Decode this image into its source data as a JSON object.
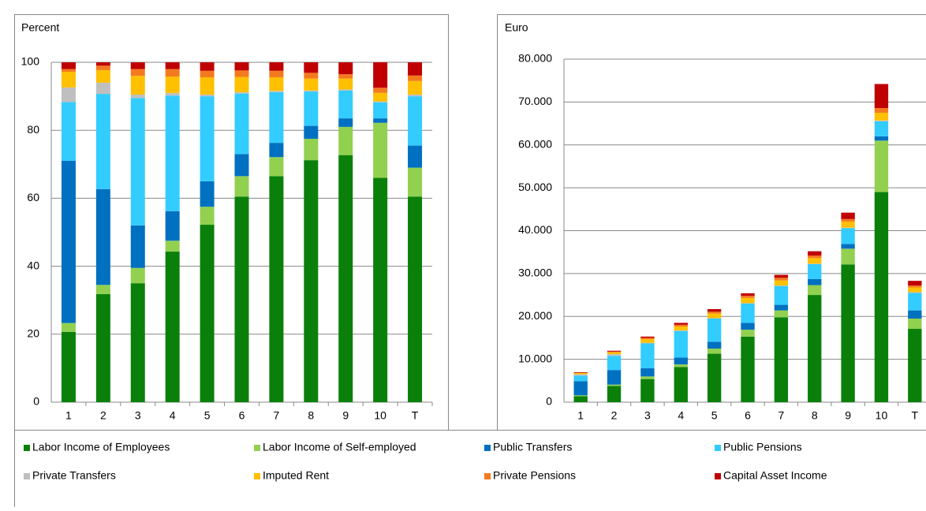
{
  "chart_data": [
    {
      "type": "stacked-bar",
      "axis_label": "Percent",
      "categories": [
        "1",
        "2",
        "3",
        "4",
        "5",
        "6",
        "7",
        "8",
        "9",
        "10",
        "T"
      ],
      "ylim": [
        0,
        100
      ],
      "yticks": [
        0,
        20,
        40,
        60,
        80,
        100
      ],
      "grid": true,
      "series": [
        {
          "name": "Labor Income of Employees",
          "color": "#0a800a",
          "values": [
            20.7,
            31.8,
            35,
            44.3,
            52.2,
            60.5,
            66.5,
            71.2,
            72.7,
            66,
            60.5
          ]
        },
        {
          "name": "Labor Income of Self-employed",
          "color": "#92d050",
          "values": [
            2.6,
            2.7,
            4.5,
            3.2,
            5.3,
            6,
            5.6,
            6.3,
            8.3,
            16.2,
            8.5
          ]
        },
        {
          "name": "Public Transfers",
          "color": "#0070c0",
          "values": [
            47.7,
            28.2,
            12.5,
            8.7,
            7.5,
            6.5,
            4.2,
            3.8,
            2.5,
            1.3,
            6.5
          ]
        },
        {
          "name": "Public Pensions",
          "color": "#33ccff",
          "values": [
            17.3,
            28,
            37.5,
            34,
            25,
            17.8,
            14.9,
            10.1,
            8.2,
            4.7,
            14.5
          ]
        },
        {
          "name": "Private Transfers",
          "color": "#bfbfbf",
          "values": [
            4.3,
            3.3,
            1,
            0.8,
            0.5,
            0.4,
            0.4,
            0.3,
            0.3,
            0.3,
            0.5
          ]
        },
        {
          "name": "Imputed Rent",
          "color": "#ffc000",
          "values": [
            4.6,
            3.7,
            5.5,
            4.8,
            5.1,
            4.5,
            4,
            3.5,
            3.2,
            2.5,
            4
          ]
        },
        {
          "name": "Private Pensions",
          "color": "#f47a1f",
          "values": [
            0.8,
            1.3,
            2,
            2.2,
            1.9,
            1.9,
            1.9,
            1.7,
            1.3,
            1.5,
            1.6
          ]
        },
        {
          "name": "Capital Asset Income",
          "color": "#c00000",
          "values": [
            2,
            1,
            2,
            2,
            2.5,
            2.4,
            2.5,
            3.1,
            3.5,
            7.5,
            3.9
          ]
        }
      ]
    },
    {
      "type": "stacked-bar",
      "axis_label": "Euro",
      "categories": [
        "1",
        "2",
        "3",
        "4",
        "5",
        "6",
        "7",
        "8",
        "9",
        "10",
        "T"
      ],
      "ylim": [
        0,
        80000
      ],
      "yticks": [
        0,
        {
          "value": 10000,
          "label": "10.000"
        },
        {
          "value": 20000,
          "label": "20.000"
        },
        {
          "value": 30000,
          "label": "30.000"
        },
        {
          "value": 40000,
          "label": "40.000"
        },
        {
          "value": 50000,
          "label": "50.000"
        },
        {
          "value": 60000,
          "label": "60.000"
        },
        {
          "value": 70000,
          "label": "70.000"
        },
        {
          "value": 80000,
          "label": "80.000"
        }
      ],
      "grid": true,
      "series": [
        {
          "color": "#0a800a",
          "values": [
            1400,
            3800,
            5400,
            8200,
            11300,
            15300,
            19800,
            25000,
            32100,
            49000,
            17100
          ]
        },
        {
          "color": "#92d050",
          "values": [
            200,
            300,
            600,
            600,
            1200,
            1600,
            1600,
            2300,
            3700,
            12000,
            2400
          ]
        },
        {
          "color": "#0070c0",
          "values": [
            3300,
            3400,
            1900,
            1600,
            1600,
            1600,
            1300,
            1400,
            1100,
            1000,
            1900
          ]
        },
        {
          "color": "#33ccff",
          "values": [
            1300,
            3300,
            5800,
            6200,
            5400,
            4500,
            4400,
            3500,
            3700,
            3500,
            4100
          ]
        },
        {
          "color": "#bfbfbf",
          "values": [
            300,
            400,
            150,
            150,
            100,
            100,
            100,
            100,
            100,
            200,
            150
          ]
        },
        {
          "color": "#ffc000",
          "values": [
            300,
            450,
            850,
            900,
            1100,
            1200,
            1200,
            1300,
            1400,
            1800,
            1100
          ]
        },
        {
          "color": "#f47a1f",
          "values": [
            60,
            150,
            300,
            400,
            400,
            500,
            600,
            600,
            600,
            1100,
            450
          ]
        },
        {
          "color": "#c00000",
          "values": [
            140,
            200,
            300,
            450,
            600,
            600,
            700,
            1000,
            1500,
            5600,
            1100
          ]
        }
      ]
    }
  ]
}
